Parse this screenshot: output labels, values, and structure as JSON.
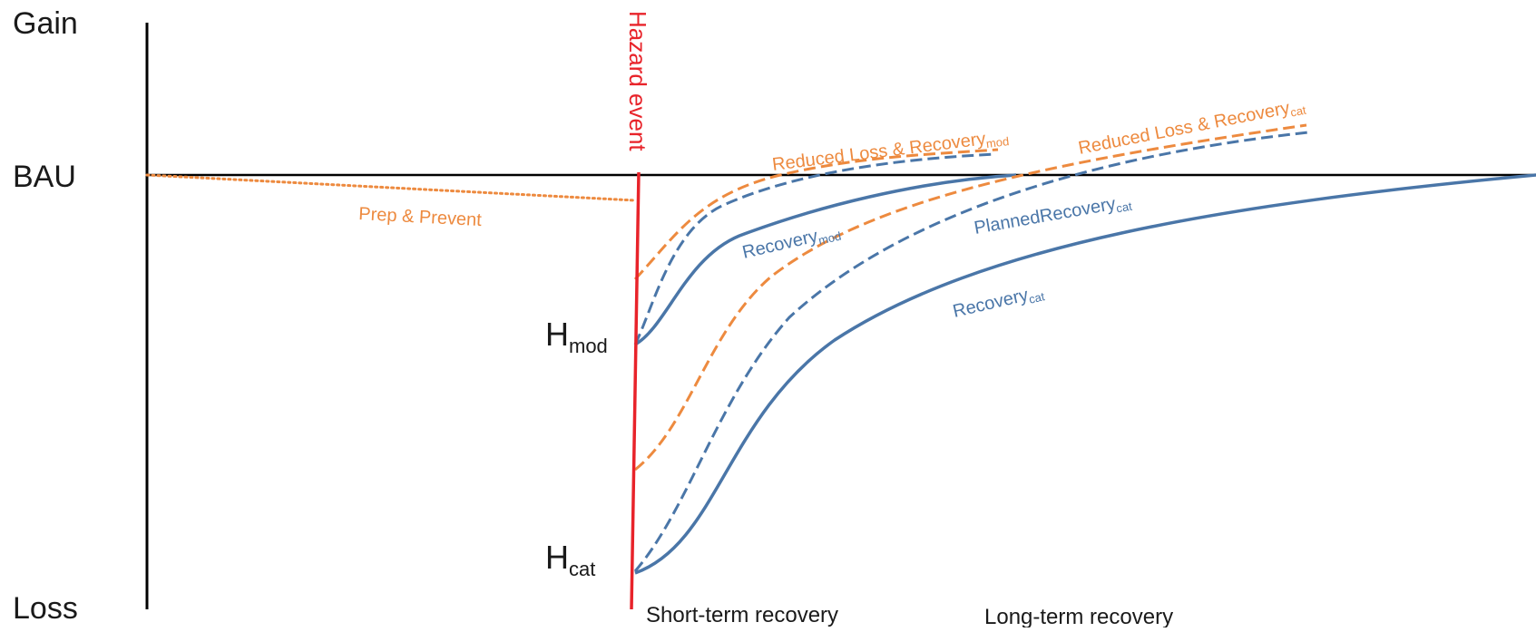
{
  "axis": {
    "gain": "Gain",
    "bau": "BAU",
    "loss": "Loss"
  },
  "hazard": {
    "label": "Hazard event",
    "color": "#e8232a"
  },
  "levels": {
    "mod": {
      "main": "H",
      "sub": "mod"
    },
    "cat": {
      "main": "H",
      "sub": "cat"
    }
  },
  "curve_labels": {
    "prep": {
      "text": "Prep & Prevent"
    },
    "reduced_mod": {
      "main": "Reduced Loss & Recovery",
      "sub": "mod"
    },
    "reduced_cat": {
      "main": "Reduced Loss & Recovery",
      "sub": "cat"
    },
    "recovery_mod": {
      "main": "Recovery",
      "sub": "mod"
    },
    "planned_cat": {
      "main": "PlannedRecovery",
      "sub": "cat"
    },
    "recovery_cat": {
      "main": "Recovery",
      "sub": "cat"
    }
  },
  "phases": {
    "short_term": "Short-term recovery",
    "long_term": "Long-term recovery"
  },
  "colors": {
    "orange": "#ed8a3f",
    "blue": "#4a76a8",
    "axis": "#000000"
  }
}
